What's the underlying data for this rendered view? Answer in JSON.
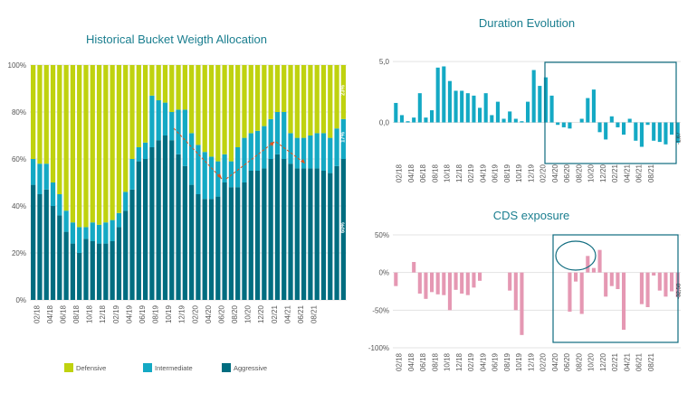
{
  "chart_data": [
    {
      "id": "bucket",
      "type": "bar",
      "stacked": true,
      "title": "Historical Bucket Weigth Allocation",
      "ylim": [
        0,
        100
      ],
      "yticks": [
        "0%",
        "20%",
        "40%",
        "60%",
        "80%",
        "100%"
      ],
      "xtick_labels": [
        "02/18",
        "04/18",
        "06/18",
        "08/18",
        "10/18",
        "12/18",
        "02/19",
        "04/19",
        "06/19",
        "08/19",
        "10/19",
        "12/19",
        "02/20",
        "04/20",
        "06/20",
        "08/20",
        "10/20",
        "12/20",
        "02/21",
        "04/21",
        "06/21",
        "08/21"
      ],
      "series": [
        {
          "name": "Aggressive",
          "color": "#006d80",
          "values": [
            49,
            45,
            47,
            40,
            36,
            29,
            24,
            20,
            26,
            25,
            24,
            24,
            25,
            31,
            38,
            47,
            59,
            60,
            65,
            68,
            70,
            68,
            62,
            57,
            49,
            45,
            43,
            43,
            44,
            50,
            48,
            48,
            50,
            55,
            55,
            56,
            60,
            62,
            60,
            58,
            56,
            56,
            56,
            56,
            55,
            54,
            57,
            60
          ]
        },
        {
          "name": "Intermediate",
          "color": "#14a9c4",
          "values": [
            11,
            13,
            11,
            10,
            9,
            9,
            9,
            11,
            5,
            8,
            8,
            9,
            9,
            6,
            8,
            13,
            6,
            7,
            22,
            17,
            14,
            12,
            19,
            24,
            22,
            21,
            20,
            18,
            15,
            12,
            11,
            17,
            19,
            16,
            17,
            18,
            17,
            18,
            20,
            13,
            13,
            13,
            14,
            15,
            16,
            15,
            16,
            17
          ]
        },
        {
          "name": "Defensive",
          "color": "#bfd20f",
          "values": [
            40,
            42,
            42,
            50,
            55,
            62,
            67,
            69,
            69,
            67,
            68,
            67,
            66,
            63,
            54,
            40,
            35,
            33,
            13,
            15,
            16,
            20,
            19,
            19,
            29,
            34,
            37,
            39,
            41,
            38,
            41,
            35,
            31,
            29,
            28,
            26,
            23,
            20,
            20,
            29,
            31,
            31,
            30,
            29,
            29,
            31,
            27,
            23
          ]
        }
      ],
      "value_labels": {
        "Defensive": "23%",
        "Intermediate": "17%",
        "Aggressive": "60%"
      }
    },
    {
      "id": "duration",
      "type": "bar",
      "title": "Duration Evolution",
      "ylim": [
        -3.0,
        5.6
      ],
      "yticks": [
        "0,0",
        "5,0"
      ],
      "xtick_labels": [
        "02/18",
        "04/18",
        "06/18",
        "08/18",
        "10/18",
        "12/18",
        "02/19",
        "04/19",
        "06/19",
        "08/19",
        "10/19",
        "12/19",
        "02/20",
        "04/20",
        "06/20",
        "08/20",
        "10/20",
        "12/20",
        "02/21",
        "04/21",
        "06/21",
        "08/21"
      ],
      "values": [
        1.6,
        0.6,
        0.1,
        0.4,
        2.4,
        0.4,
        1.0,
        4.5,
        4.6,
        3.4,
        2.6,
        2.6,
        2.4,
        2.2,
        1.2,
        2.4,
        0.6,
        1.7,
        0.3,
        0.9,
        0.3,
        0.1,
        1.7,
        4.3,
        3.0,
        3.7,
        2.2,
        -0.2,
        -0.4,
        -0.5,
        0.0,
        0.3,
        2.0,
        2.7,
        -0.8,
        -1.4,
        0.5,
        -0.4,
        -1.0,
        0.3,
        -1.5,
        -2.0,
        -0.2,
        -1.5,
        -1.6,
        -1.8,
        -1.0,
        -1.67
      ],
      "end_label": "-1,67",
      "color": "#14a9c4"
    },
    {
      "id": "cds",
      "type": "bar",
      "title": "CDS exposure",
      "ylim": [
        -100,
        50
      ],
      "yticks": [
        "50%",
        "0%",
        "-50%",
        "-100%"
      ],
      "xtick_labels": [
        "02/18",
        "04/18",
        "06/18",
        "08/18",
        "10/18",
        "12/18",
        "02/19",
        "04/19",
        "06/19",
        "08/19",
        "10/19",
        "12/19",
        "02/20",
        "04/20",
        "06/20",
        "08/20",
        "10/20",
        "12/20",
        "02/21",
        "04/21",
        "06/21",
        "08/21"
      ],
      "values": [
        -18,
        0,
        0,
        14,
        -28,
        -35,
        -26,
        -29,
        -30,
        -50,
        -23,
        -28,
        -30,
        -20,
        -11,
        0,
        0,
        0,
        0,
        -24,
        -50,
        -83,
        0,
        0,
        0,
        0,
        0,
        0,
        0,
        -52,
        -12,
        -55,
        22,
        6,
        30,
        -32,
        -18,
        -22,
        -76,
        0,
        0,
        -42,
        -46,
        -4,
        -24,
        -32,
        -25,
        -32.58
      ],
      "end_label": "-32,58",
      "color": "#e598b3"
    }
  ],
  "legend": [
    {
      "name": "Defensive",
      "color": "#bfd20f"
    },
    {
      "name": "Intermediate",
      "color": "#14a9c4"
    },
    {
      "name": "Aggressive",
      "color": "#006d80"
    }
  ],
  "colors": {
    "title": "#1a7e8f",
    "box": "#0e6b7e",
    "arrow": "#e0521b",
    "axis_text": "#555555"
  }
}
